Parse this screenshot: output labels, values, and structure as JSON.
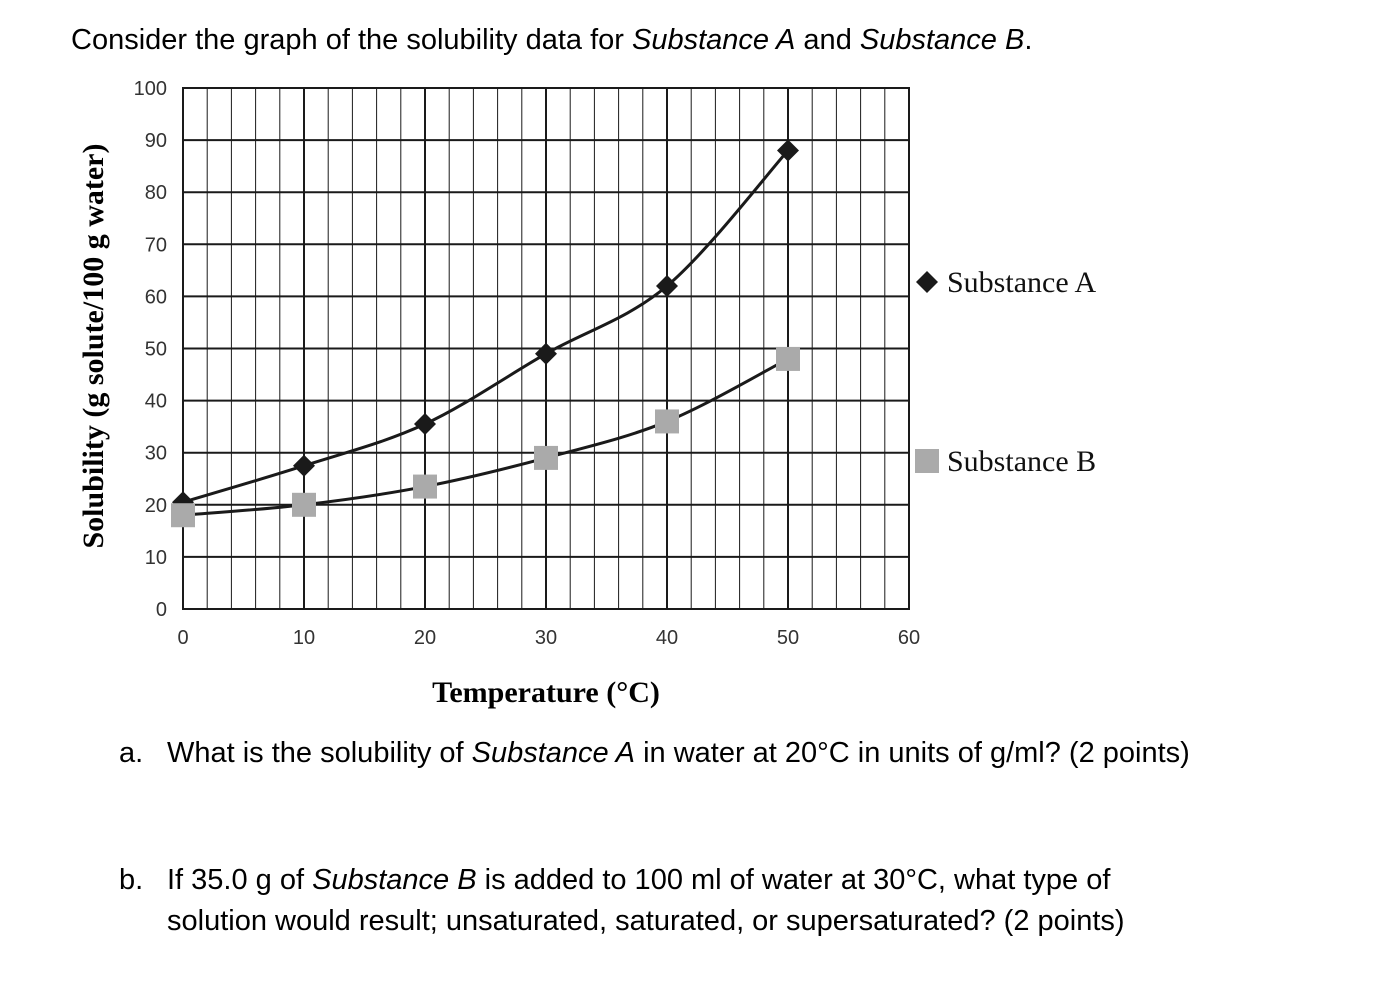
{
  "intro": {
    "text_before": "Consider the graph of the solubility data for ",
    "substance_a": "Substance A",
    "text_and": " and ",
    "substance_b": "Substance B",
    "text_end": "."
  },
  "chart_data": {
    "type": "scatter",
    "title": "",
    "xlabel": "Temperature (°C)",
    "ylabel": "Solubility (g solute/100 g water)",
    "xlim": [
      0,
      60
    ],
    "ylim": [
      0,
      100
    ],
    "xticks": [
      0,
      10,
      20,
      30,
      40,
      50,
      60
    ],
    "yticks": [
      0,
      10,
      20,
      30,
      40,
      50,
      60,
      70,
      80,
      90,
      100
    ],
    "grid": true,
    "legend_position": "right",
    "series": [
      {
        "name": "Substance A",
        "marker": "diamond",
        "color": "#1a1a1a",
        "x": [
          0,
          10,
          20,
          30,
          40,
          50
        ],
        "y": [
          20.5,
          27.5,
          35.5,
          49,
          62,
          88
        ],
        "trendline": true
      },
      {
        "name": "Substance B",
        "marker": "square",
        "color": "#aaaaaa",
        "x": [
          0,
          10,
          20,
          30,
          40,
          50
        ],
        "y": [
          18,
          20,
          23.5,
          29,
          36,
          48
        ],
        "trendline": true
      }
    ]
  },
  "questions": [
    {
      "label": "a.",
      "lines": [
        {
          "before": "What is the solubility of ",
          "italic": "Substance A",
          "after": " in water at 20°C in units of g/ml? (2 points)"
        }
      ]
    },
    {
      "label": "b.",
      "lines": [
        {
          "before": "If 35.0 g of ",
          "italic": "Substance B",
          "after": " is added to 100 ml of water at 30°C, what type of"
        },
        {
          "before": "solution would result; unsaturated, saturated, or supersaturated? (2 points)",
          "italic": "",
          "after": ""
        }
      ]
    }
  ]
}
